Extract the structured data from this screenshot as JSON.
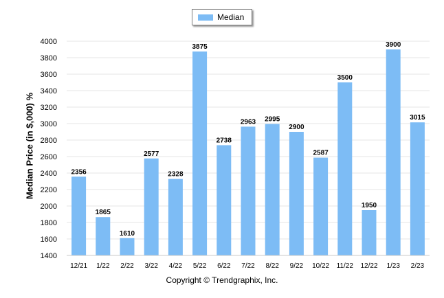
{
  "legend": {
    "label": "Median",
    "color": "#7dbcf5"
  },
  "footer": {
    "copyright": "Copyright © Trendgraphix, Inc."
  },
  "chart_data": {
    "type": "bar",
    "title": "",
    "xlabel": "",
    "ylabel": "Median Price (in $,000) %",
    "ylim": [
      1400,
      4000
    ],
    "yticks": [
      1400,
      1600,
      1800,
      2000,
      2200,
      2400,
      2600,
      2800,
      3000,
      3200,
      3400,
      3600,
      3800,
      4000
    ],
    "grid": true,
    "legend_position": "top-center",
    "categories": [
      "12/21",
      "1/22",
      "2/22",
      "3/22",
      "4/22",
      "5/22",
      "6/22",
      "7/22",
      "8/22",
      "9/22",
      "10/22",
      "11/22",
      "12/22",
      "1/23",
      "2/23"
    ],
    "series": [
      {
        "name": "Median",
        "values": [
          2356,
          1865,
          1610,
          2577,
          2328,
          3875,
          2738,
          2963,
          2995,
          2900,
          2587,
          3500,
          1950,
          3900,
          3015
        ]
      }
    ],
    "data_labels": true
  }
}
